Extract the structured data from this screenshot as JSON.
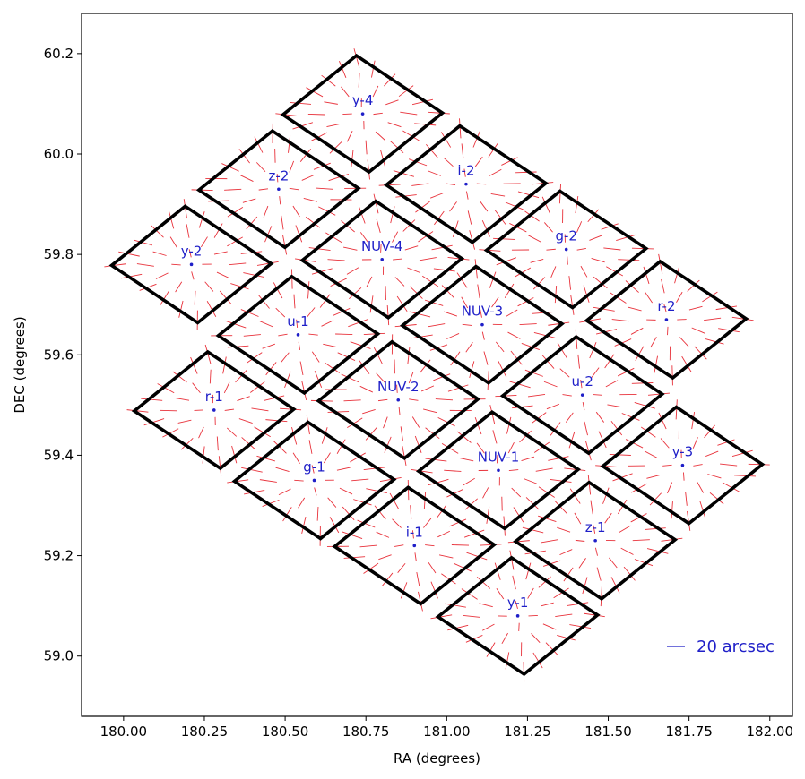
{
  "chart_data": {
    "type": "scatter",
    "xlabel": "RA (degrees)",
    "ylabel": "DEC (degrees)",
    "xlim": [
      179.87,
      182.07
    ],
    "ylim": [
      58.88,
      60.28
    ],
    "xticks": [
      "180.00",
      "180.25",
      "180.50",
      "180.75",
      "181.00",
      "181.25",
      "181.50",
      "181.75",
      "182.00"
    ],
    "xtick_values": [
      180.0,
      180.25,
      180.5,
      180.75,
      181.0,
      181.25,
      181.5,
      181.75,
      182.0
    ],
    "yticks": [
      "59.0",
      "59.2",
      "59.4",
      "59.6",
      "59.8",
      "60.0",
      "60.2"
    ],
    "ytick_values": [
      59.0,
      59.2,
      59.4,
      59.6,
      59.8,
      60.0,
      60.2
    ],
    "grid": false,
    "colors": {
      "frame": "#000000",
      "center": "#1f1fc8",
      "label": "#1f1fc8",
      "vector": "#e8313a",
      "legend": "#1f1fc8"
    },
    "legend": {
      "label": "20 arcsec",
      "placement": "bottom-right"
    },
    "detectors": [
      {
        "name": "y-4",
        "ra": 180.74,
        "dec": 60.08
      },
      {
        "name": "z-2",
        "ra": 180.48,
        "dec": 59.93
      },
      {
        "name": "i-2",
        "ra": 181.06,
        "dec": 59.94
      },
      {
        "name": "y-2",
        "ra": 180.21,
        "dec": 59.78
      },
      {
        "name": "NUV-4",
        "ra": 180.8,
        "dec": 59.79
      },
      {
        "name": "g-2",
        "ra": 181.37,
        "dec": 59.81
      },
      {
        "name": "u-1",
        "ra": 180.54,
        "dec": 59.64
      },
      {
        "name": "NUV-3",
        "ra": 181.11,
        "dec": 59.66
      },
      {
        "name": "r-2",
        "ra": 181.68,
        "dec": 59.67
      },
      {
        "name": "r-1",
        "ra": 180.28,
        "dec": 59.49
      },
      {
        "name": "NUV-2",
        "ra": 180.85,
        "dec": 59.51
      },
      {
        "name": "u-2",
        "ra": 181.42,
        "dec": 59.52
      },
      {
        "name": "g-1",
        "ra": 180.59,
        "dec": 59.35
      },
      {
        "name": "NUV-1",
        "ra": 181.16,
        "dec": 59.37
      },
      {
        "name": "y-3",
        "ra": 181.73,
        "dec": 59.38
      },
      {
        "name": "i-1",
        "ra": 180.9,
        "dec": 59.22
      },
      {
        "name": "z-1",
        "ra": 181.46,
        "dec": 59.23
      },
      {
        "name": "y-1",
        "ra": 181.22,
        "dec": 59.08
      }
    ]
  }
}
